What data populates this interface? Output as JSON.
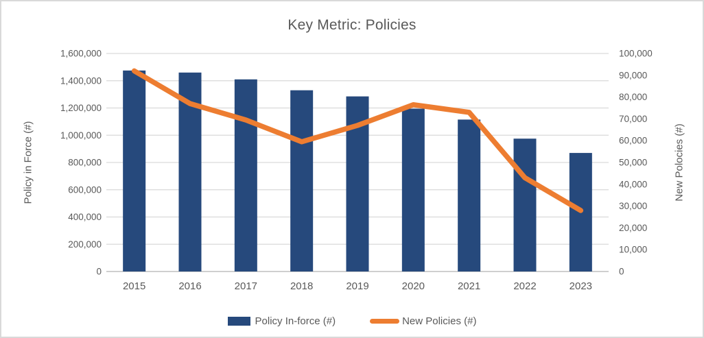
{
  "colors": {
    "bar_series": "#26497C",
    "line_series": "#ED7D31",
    "gridline": "#D9D9D9",
    "axis_line": "#BFBFBF",
    "text": "#595959",
    "frame_border": "#D9D9D9"
  },
  "chart_data": {
    "type": "combo-bar-line",
    "title": "Key Metric: Policies",
    "categories": [
      "2015",
      "2016",
      "2017",
      "2018",
      "2019",
      "2020",
      "2021",
      "2022",
      "2023"
    ],
    "series": [
      {
        "name": "Policy In-force (#)",
        "type": "bar",
        "axis": "left",
        "color": "#26497C",
        "values": [
          1475000,
          1460000,
          1410000,
          1330000,
          1285000,
          1195000,
          1115000,
          975000,
          870000
        ]
      },
      {
        "name": "New Policies (#)",
        "type": "line",
        "axis": "right",
        "color": "#ED7D31",
        "values": [
          92000,
          77000,
          69500,
          59500,
          67000,
          76500,
          73000,
          43000,
          28000
        ]
      }
    ],
    "left_axis": {
      "label": "Policy in Force (#)",
      "min": 0,
      "max": 1600000,
      "step": 200000
    },
    "right_axis": {
      "label": "New Polocies (#)",
      "min": 0,
      "max": 100000,
      "step": 10000
    },
    "grid": true,
    "legend_position": "bottom"
  }
}
